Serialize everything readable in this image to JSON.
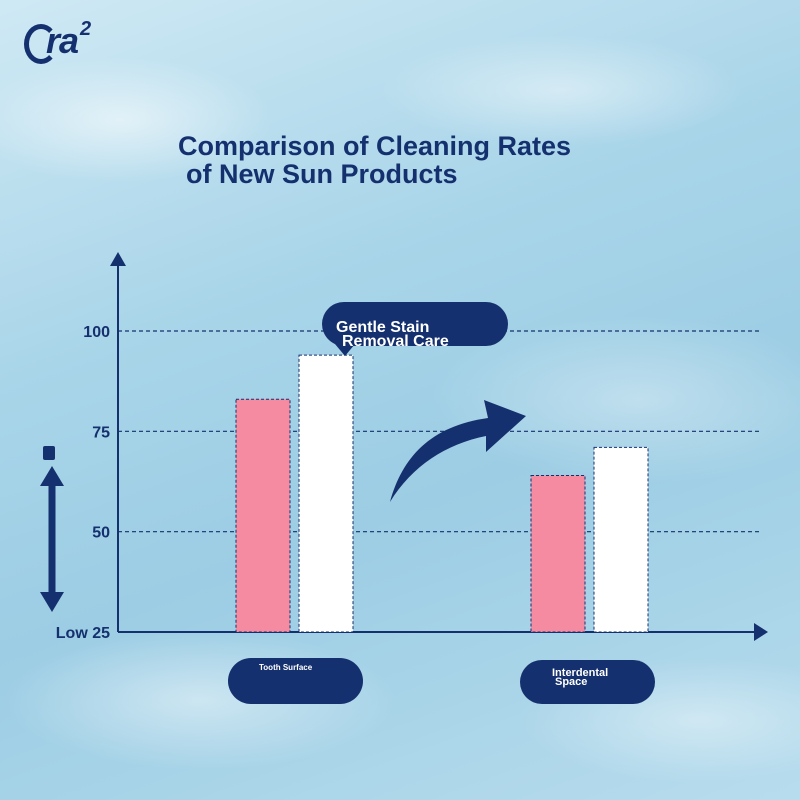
{
  "brand": {
    "logo_text": "ra",
    "logo_super": "2",
    "logo_o": "O"
  },
  "chart_data": {
    "type": "bar",
    "title": "Comparison of Cleaning Rates",
    "title_line2": "of New Sun Products",
    "categories": [
      "Tooth Surface",
      "Interdental Space"
    ],
    "series": [
      {
        "name": "",
        "color": "#f48ba1",
        "values": [
          83,
          64
        ]
      },
      {
        "name": "",
        "color": "#ffffff",
        "values": [
          94,
          71
        ]
      }
    ],
    "y_ticks": [
      {
        "value": 100,
        "label": "100"
      },
      {
        "value": 75,
        "label": "75"
      },
      {
        "value": 50,
        "label": "50"
      },
      {
        "value": 25,
        "label": "Low 25"
      }
    ],
    "ylim": [
      25,
      100
    ],
    "grid": true,
    "callout": {
      "line1": "Gentle Stain",
      "line2": "Removal Care"
    },
    "category_pills": {
      "tooth": {
        "line1": "Tooth Surface"
      },
      "interdental": {
        "line1": "Interdental",
        "line2": "Space"
      }
    }
  }
}
